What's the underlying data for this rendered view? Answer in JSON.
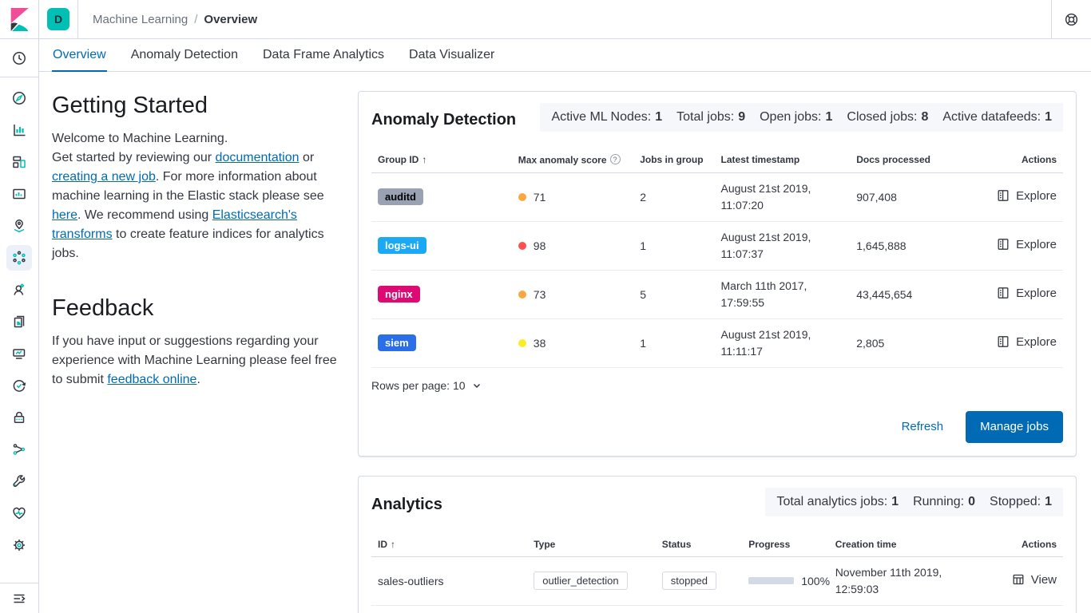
{
  "header": {
    "space_badge": "D",
    "breadcrumb": {
      "parent": "Machine Learning",
      "separator": "/",
      "current": "Overview"
    },
    "icons": [
      "kibana-logo",
      "help-icon"
    ]
  },
  "tabs": [
    {
      "label": "Overview",
      "active": true
    },
    {
      "label": "Anomaly Detection",
      "active": false
    },
    {
      "label": "Data Frame Analytics",
      "active": false
    },
    {
      "label": "Data Visualizer",
      "active": false
    }
  ],
  "sidebar": {
    "icons": [
      "recent-clock",
      "discover-compass",
      "visualize-chart",
      "dashboard",
      "canvas",
      "maps",
      "machine-learning",
      "graph-user",
      "logs-pages",
      "metrics",
      "uptime",
      "security-lock",
      "apm-nodes",
      "dev-tools-wrench",
      "stack-monitoring-heart",
      "management-gear",
      "collapse-menu"
    ],
    "active_icon": "machine-learning"
  },
  "getting_started": {
    "title": "Getting Started",
    "intro": "Welcome to Machine Learning.",
    "paragraph": [
      {
        "text": "Get started by reviewing our "
      },
      {
        "text": "documentation",
        "link": true
      },
      {
        "text": " or "
      },
      {
        "text": "creating a new job",
        "link": true
      },
      {
        "text": ". For more information about machine learning in the Elastic stack please see "
      },
      {
        "text": "here",
        "link": true
      },
      {
        "text": ". We recommend using "
      },
      {
        "text": "Elasticsearch's transforms",
        "link": true
      },
      {
        "text": " to create feature indices for analytics jobs."
      }
    ]
  },
  "feedback": {
    "title": "Feedback",
    "paragraph": [
      {
        "text": "If you have input or suggestions regarding your experience with Machine Learning please feel free to submit "
      },
      {
        "text": "feedback online",
        "link": true
      },
      {
        "text": "."
      }
    ]
  },
  "anomaly_panel": {
    "title": "Anomaly Detection",
    "stats": [
      {
        "label": "Active ML Nodes:",
        "value": "1"
      },
      {
        "label": "Total jobs:",
        "value": "9"
      },
      {
        "label": "Open jobs:",
        "value": "1"
      },
      {
        "label": "Closed jobs:",
        "value": "8"
      },
      {
        "label": "Active datafeeds:",
        "value": "1"
      }
    ],
    "columns": [
      "Group ID",
      "Max anomaly score",
      "Jobs in group",
      "Latest timestamp",
      "Docs processed",
      "Actions"
    ],
    "sort_arrow": "↑",
    "info_glyph": "?",
    "rows": [
      {
        "group": "auditd",
        "badge_bg": "#98A2B3",
        "badge_fg": "#000000",
        "dot": "#FBA740",
        "score": "71",
        "jobs": "2",
        "ts1": "August 21st 2019,",
        "ts2": "11:07:20",
        "docs": "907,408",
        "action": "Explore"
      },
      {
        "group": "logs-ui",
        "badge_bg": "#1BA9F5",
        "badge_fg": "#FFFFFF",
        "dot": "#FE5050",
        "score": "98",
        "jobs": "1",
        "ts1": "August 21st 2019,",
        "ts2": "11:07:37",
        "docs": "1,645,888",
        "action": "Explore"
      },
      {
        "group": "nginx",
        "badge_bg": "#DD0A73",
        "badge_fg": "#FFFFFF",
        "dot": "#FBA740",
        "score": "73",
        "jobs": "5",
        "ts1": "March 11th 2017,",
        "ts2": "17:59:55",
        "docs": "43,445,654",
        "action": "Explore"
      },
      {
        "group": "siem",
        "badge_bg": "#2B6FE8",
        "badge_fg": "#FFFFFF",
        "dot": "#FDEC25",
        "score": "38",
        "jobs": "1",
        "ts1": "August 21st 2019,",
        "ts2": "11:11:17",
        "docs": "2,805",
        "action": "Explore"
      }
    ],
    "rows_per_page": "Rows per page: 10",
    "refresh_label": "Refresh",
    "manage_jobs_label": "Manage jobs"
  },
  "analytics_panel": {
    "title": "Analytics",
    "stats": [
      {
        "label": "Total analytics jobs:",
        "value": "1"
      },
      {
        "label": "Running:",
        "value": "0"
      },
      {
        "label": "Stopped:",
        "value": "1"
      }
    ],
    "columns": [
      "ID",
      "Type",
      "Status",
      "Progress",
      "Creation time",
      "Actions"
    ],
    "sort_arrow": "↑",
    "rows": [
      {
        "id": "sales-outliers",
        "type": "outlier_detection",
        "status": "stopped",
        "progress_label": "100%",
        "progress_value": "100%",
        "ts1": "November 11th 2019,",
        "ts2": "12:59:03",
        "action": "View"
      }
    ]
  },
  "colors": {
    "accent_blue": "#006BB4",
    "teal": "#00BFB3",
    "pink": "#F04E98",
    "panel_border": "#D3DAE6",
    "stats_bg": "#F5F7FA",
    "text": "#343741",
    "subdued": "#69707D"
  }
}
